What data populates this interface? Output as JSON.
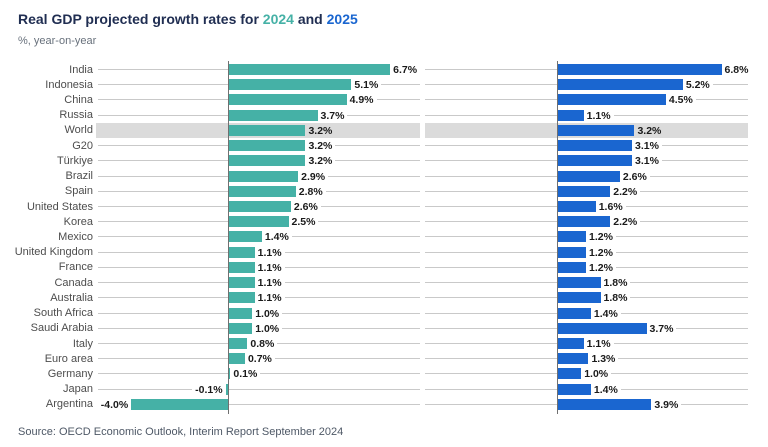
{
  "header": {
    "title_prefix": "Real GDP projected growth rates for",
    "title_year_1": "2024",
    "title_conjunction": "and",
    "title_year_2": "2025",
    "subtitle": "%, year-on-year"
  },
  "footer": {
    "source": "Source: OECD Economic Outlook, Interim Report September 2024"
  },
  "colors": {
    "teal_2024": "#45b1a6",
    "blue_2025": "#1a66d0",
    "highlight_band": "#dbdbdb",
    "row_line": "#c9c9c9",
    "axis": "#707070",
    "title_text": "#202e52"
  },
  "chart_data": {
    "type": "bar",
    "orientation": "horizontal",
    "layout": "two side-by-side panels sharing one category axis, zero baselines at each panel axis",
    "value_suffix": "%",
    "highlight_category": "World",
    "grid": "light horizontal leader lines per row",
    "legend_position": "none (years colored in title)",
    "xlim_per_panel": [
      -5.5,
      7.9
    ],
    "categories": [
      "India",
      "Indonesia",
      "China",
      "Russia",
      "World",
      "G20",
      "Türkiye",
      "Brazil",
      "Spain",
      "United States",
      "Korea",
      "Mexico",
      "United Kingdom",
      "France",
      "Canada",
      "Australia",
      "South Africa",
      "Saudi Arabia",
      "Italy",
      "Euro area",
      "Germany",
      "Japan",
      "Argentina"
    ],
    "series": [
      {
        "name": "2024",
        "color": "#45b1a6",
        "values": [
          6.7,
          5.1,
          4.9,
          3.7,
          3.2,
          3.2,
          3.2,
          2.9,
          2.8,
          2.6,
          2.5,
          1.4,
          1.1,
          1.1,
          1.1,
          1.1,
          1.0,
          1.0,
          0.8,
          0.7,
          0.1,
          -0.1,
          -4.0
        ]
      },
      {
        "name": "2025",
        "color": "#1a66d0",
        "values": [
          6.8,
          5.2,
          4.5,
          1.1,
          3.2,
          3.1,
          3.1,
          2.6,
          2.2,
          1.6,
          2.2,
          1.2,
          1.2,
          1.2,
          1.8,
          1.8,
          1.4,
          3.7,
          1.1,
          1.3,
          1.0,
          1.4,
          3.9
        ]
      }
    ]
  }
}
